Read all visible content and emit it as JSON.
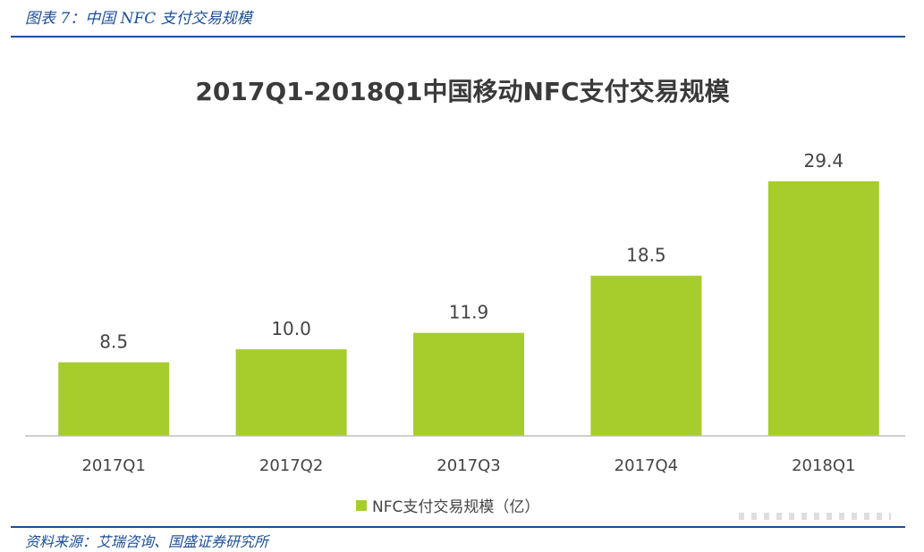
{
  "caption": "图表 7：中国 NFC 支付交易规模",
  "source": "资料来源：艾瑞咨询、国盛证券研究所",
  "colors": {
    "bar": "#a6cd2c",
    "rule": "#1c4f96",
    "axis": "#bfbfbf"
  },
  "chart_data": {
    "type": "bar",
    "title": "2017Q1-2018Q1中国移动NFC支付交易规模",
    "categories": [
      "2017Q1",
      "2017Q2",
      "2017Q3",
      "2017Q4",
      "2018Q1"
    ],
    "series": [
      {
        "name": "NFC支付交易规模（亿）",
        "values": [
          8.5,
          10.0,
          11.9,
          18.5,
          29.4
        ]
      }
    ],
    "value_labels": [
      "8.5",
      "10.0",
      "11.9",
      "18.5",
      "29.4"
    ],
    "ylim": [
      0,
      29.4
    ],
    "grid": false,
    "legend": "bottom"
  }
}
